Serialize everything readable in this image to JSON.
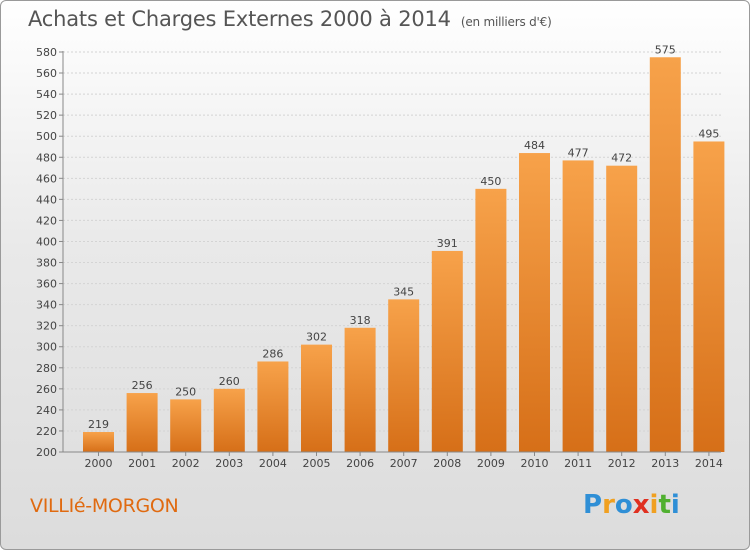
{
  "chart_data": {
    "type": "bar",
    "title": "Achats et Charges Externes 2000 à 2014",
    "subtitle": "(en milliers d'€)",
    "categories": [
      "2000",
      "2001",
      "2002",
      "2003",
      "2004",
      "2005",
      "2006",
      "2007",
      "2008",
      "2009",
      "2010",
      "2011",
      "2012",
      "2013",
      "2014"
    ],
    "values": [
      219,
      256,
      250,
      260,
      286,
      302,
      318,
      345,
      391,
      450,
      484,
      477,
      472,
      575,
      495
    ],
    "ylim": [
      200,
      580
    ],
    "yticks": [
      200,
      220,
      240,
      260,
      280,
      300,
      320,
      340,
      360,
      380,
      400,
      420,
      440,
      460,
      480,
      500,
      520,
      540,
      560,
      580
    ],
    "grid": true,
    "bar_color": "#f0922e",
    "bar_color_dark": "#d9721a"
  },
  "commune": "VILLIé-MORGON",
  "logo": {
    "letters": [
      "P",
      "r",
      "o",
      "x",
      "i",
      "t",
      "i"
    ],
    "colors": [
      "#2f8fd6",
      "#f0a020",
      "#2f8fd6",
      "#e03020",
      "#f0a020",
      "#50b030",
      "#2f8fd6"
    ]
  }
}
